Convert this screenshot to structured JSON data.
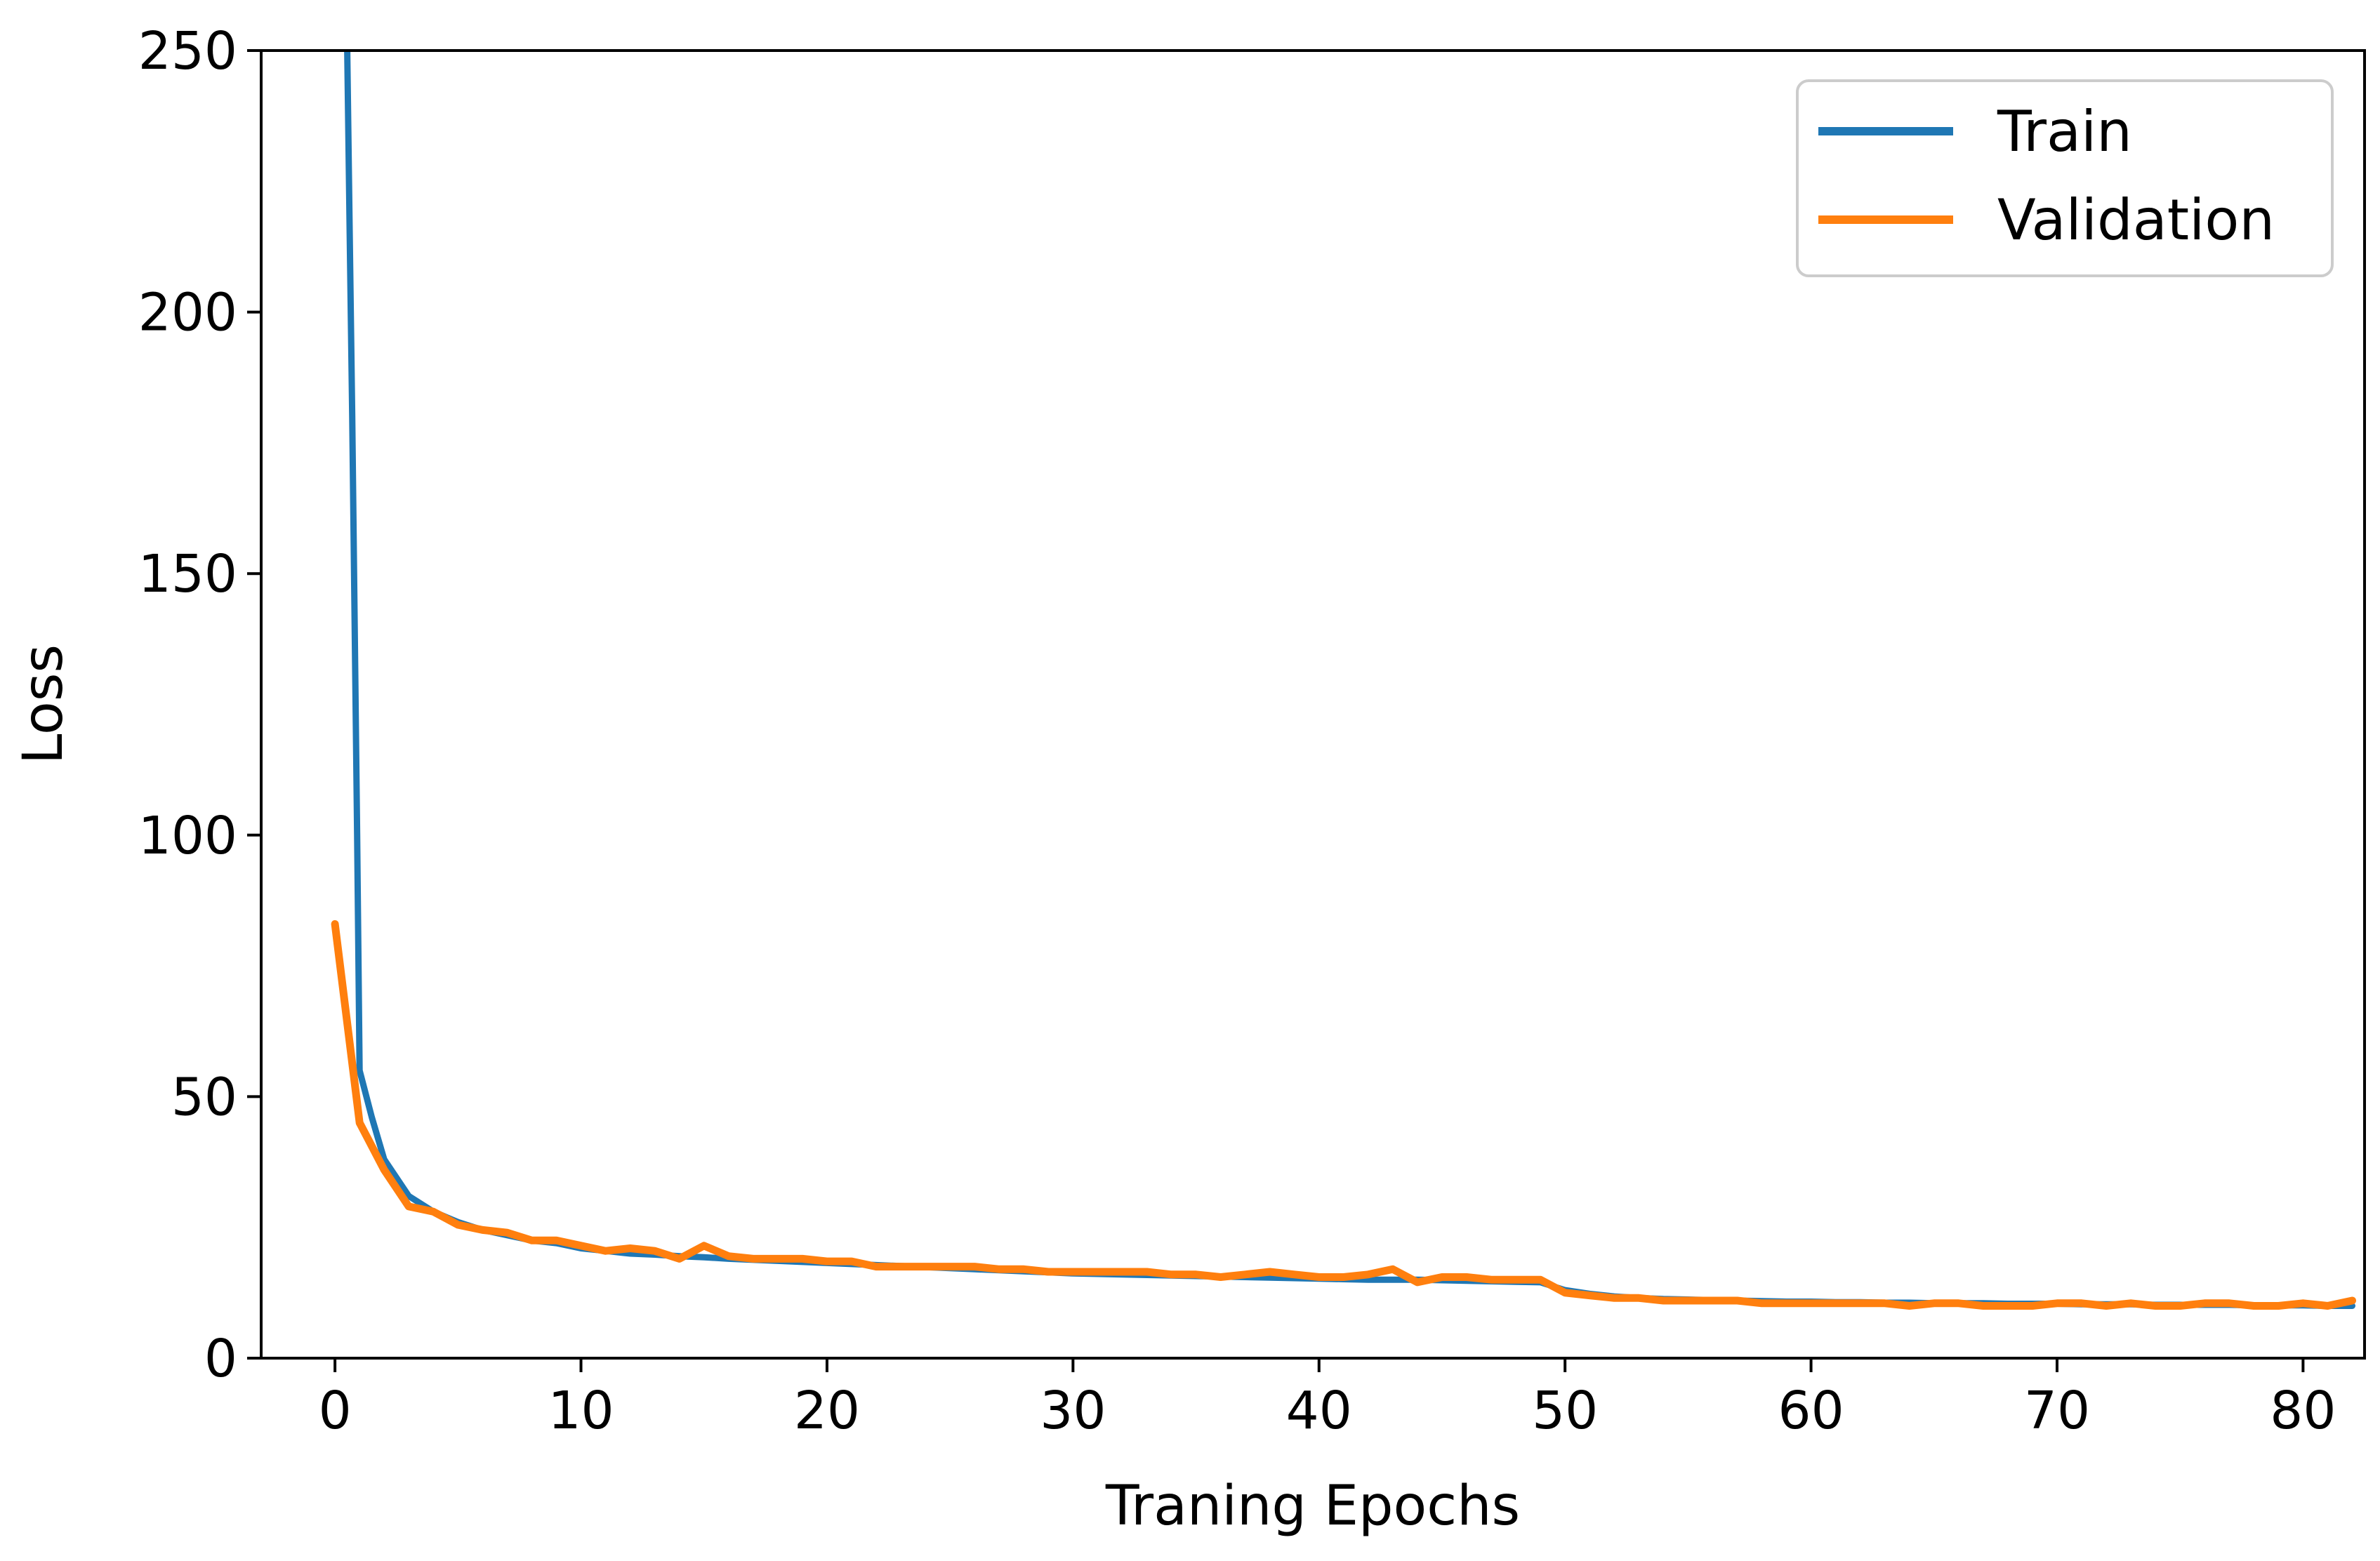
{
  "chart_data": {
    "type": "line",
    "title": "",
    "xlabel": "Traning Epochs",
    "ylabel": "Loss",
    "xlim": [
      -3,
      82.5
    ],
    "ylim": [
      0,
      250
    ],
    "xticks": [
      0,
      10,
      20,
      30,
      40,
      50,
      60,
      70,
      80
    ],
    "yticks": [
      0,
      50,
      100,
      150,
      200,
      250
    ],
    "grid": false,
    "legend_position": "top-right",
    "series": [
      {
        "name": "Train",
        "color": "#1f77b4",
        "x": [
          0.5,
          0.6,
          0.7,
          0.8,
          0.9,
          1,
          1.5,
          2,
          3,
          4,
          5,
          6,
          7,
          8,
          9,
          10,
          11,
          12,
          13,
          14,
          15,
          16,
          17,
          18,
          19,
          20,
          21,
          22,
          23,
          24,
          25,
          26,
          27,
          28,
          29,
          30,
          31,
          32,
          33,
          34,
          35,
          36,
          37,
          38,
          39,
          40,
          41,
          42,
          43,
          44,
          45,
          46,
          47,
          48,
          49,
          50,
          51,
          52,
          53,
          54,
          55,
          56,
          57,
          58,
          59,
          60,
          61,
          62,
          63,
          64,
          65,
          66,
          67,
          68,
          69,
          70,
          71,
          72,
          73,
          74,
          75,
          76,
          77,
          78,
          79,
          80,
          81,
          82
        ],
        "values": [
          250,
          215,
          180,
          140,
          100,
          55,
          46,
          38,
          31,
          28,
          26,
          24.5,
          23.5,
          22.5,
          22,
          21,
          20.5,
          20,
          19.8,
          19.5,
          19.3,
          19,
          18.8,
          18.6,
          18.4,
          18.2,
          18,
          17.8,
          17.6,
          17.4,
          17.2,
          17,
          16.8,
          16.6,
          16.4,
          16.2,
          16.1,
          16,
          15.9,
          15.8,
          15.7,
          15.6,
          15.5,
          15.4,
          15.3,
          15.2,
          15.1,
          15,
          15,
          15,
          14.9,
          14.8,
          14.7,
          14.6,
          14.5,
          13,
          12.3,
          11.8,
          11.5,
          11.3,
          11.2,
          11.1,
          11,
          10.9,
          10.8,
          10.8,
          10.7,
          10.7,
          10.6,
          10.6,
          10.5,
          10.5,
          10.5,
          10.4,
          10.4,
          10.4,
          10.3,
          10.3,
          10.3,
          10.2,
          10.2,
          10.2,
          10.2,
          10.1,
          10.1,
          10.1,
          10,
          10
        ]
      },
      {
        "name": "Validation",
        "color": "#ff7f0e",
        "x": [
          0,
          1,
          2,
          3,
          4,
          5,
          6,
          7,
          8,
          9,
          10,
          11,
          12,
          13,
          14,
          15,
          16,
          17,
          18,
          19,
          20,
          21,
          22,
          23,
          24,
          25,
          26,
          27,
          28,
          29,
          30,
          31,
          32,
          33,
          34,
          35,
          36,
          37,
          38,
          39,
          40,
          41,
          42,
          43,
          44,
          45,
          46,
          47,
          48,
          49,
          50,
          51,
          52,
          53,
          54,
          55,
          56,
          57,
          58,
          59,
          60,
          61,
          62,
          63,
          64,
          65,
          66,
          67,
          68,
          69,
          70,
          71,
          72,
          73,
          74,
          75,
          76,
          77,
          78,
          79,
          80,
          81,
          82
        ],
        "values": [
          83,
          45,
          36,
          29,
          28,
          25.5,
          24.5,
          24,
          22.5,
          22.5,
          21.5,
          20.5,
          21,
          20.5,
          19,
          21.5,
          19.5,
          19,
          19,
          19,
          18.5,
          18.5,
          17.5,
          17.5,
          17.5,
          17.5,
          17.5,
          17,
          17,
          16.5,
          16.5,
          16.5,
          16.5,
          16.5,
          16,
          16,
          15.5,
          16,
          16.5,
          16,
          15.5,
          15.5,
          16,
          17,
          14.5,
          15.5,
          15.5,
          15,
          15,
          15,
          12.5,
          12,
          11.5,
          11.5,
          11,
          11,
          11,
          11,
          10.5,
          10.5,
          10.5,
          10.5,
          10.5,
          10.5,
          10,
          10.5,
          10.5,
          10,
          10,
          10,
          10.5,
          10.5,
          10,
          10.5,
          10,
          10,
          10.5,
          10.5,
          10,
          10,
          10.5,
          10,
          11
        ]
      }
    ]
  }
}
